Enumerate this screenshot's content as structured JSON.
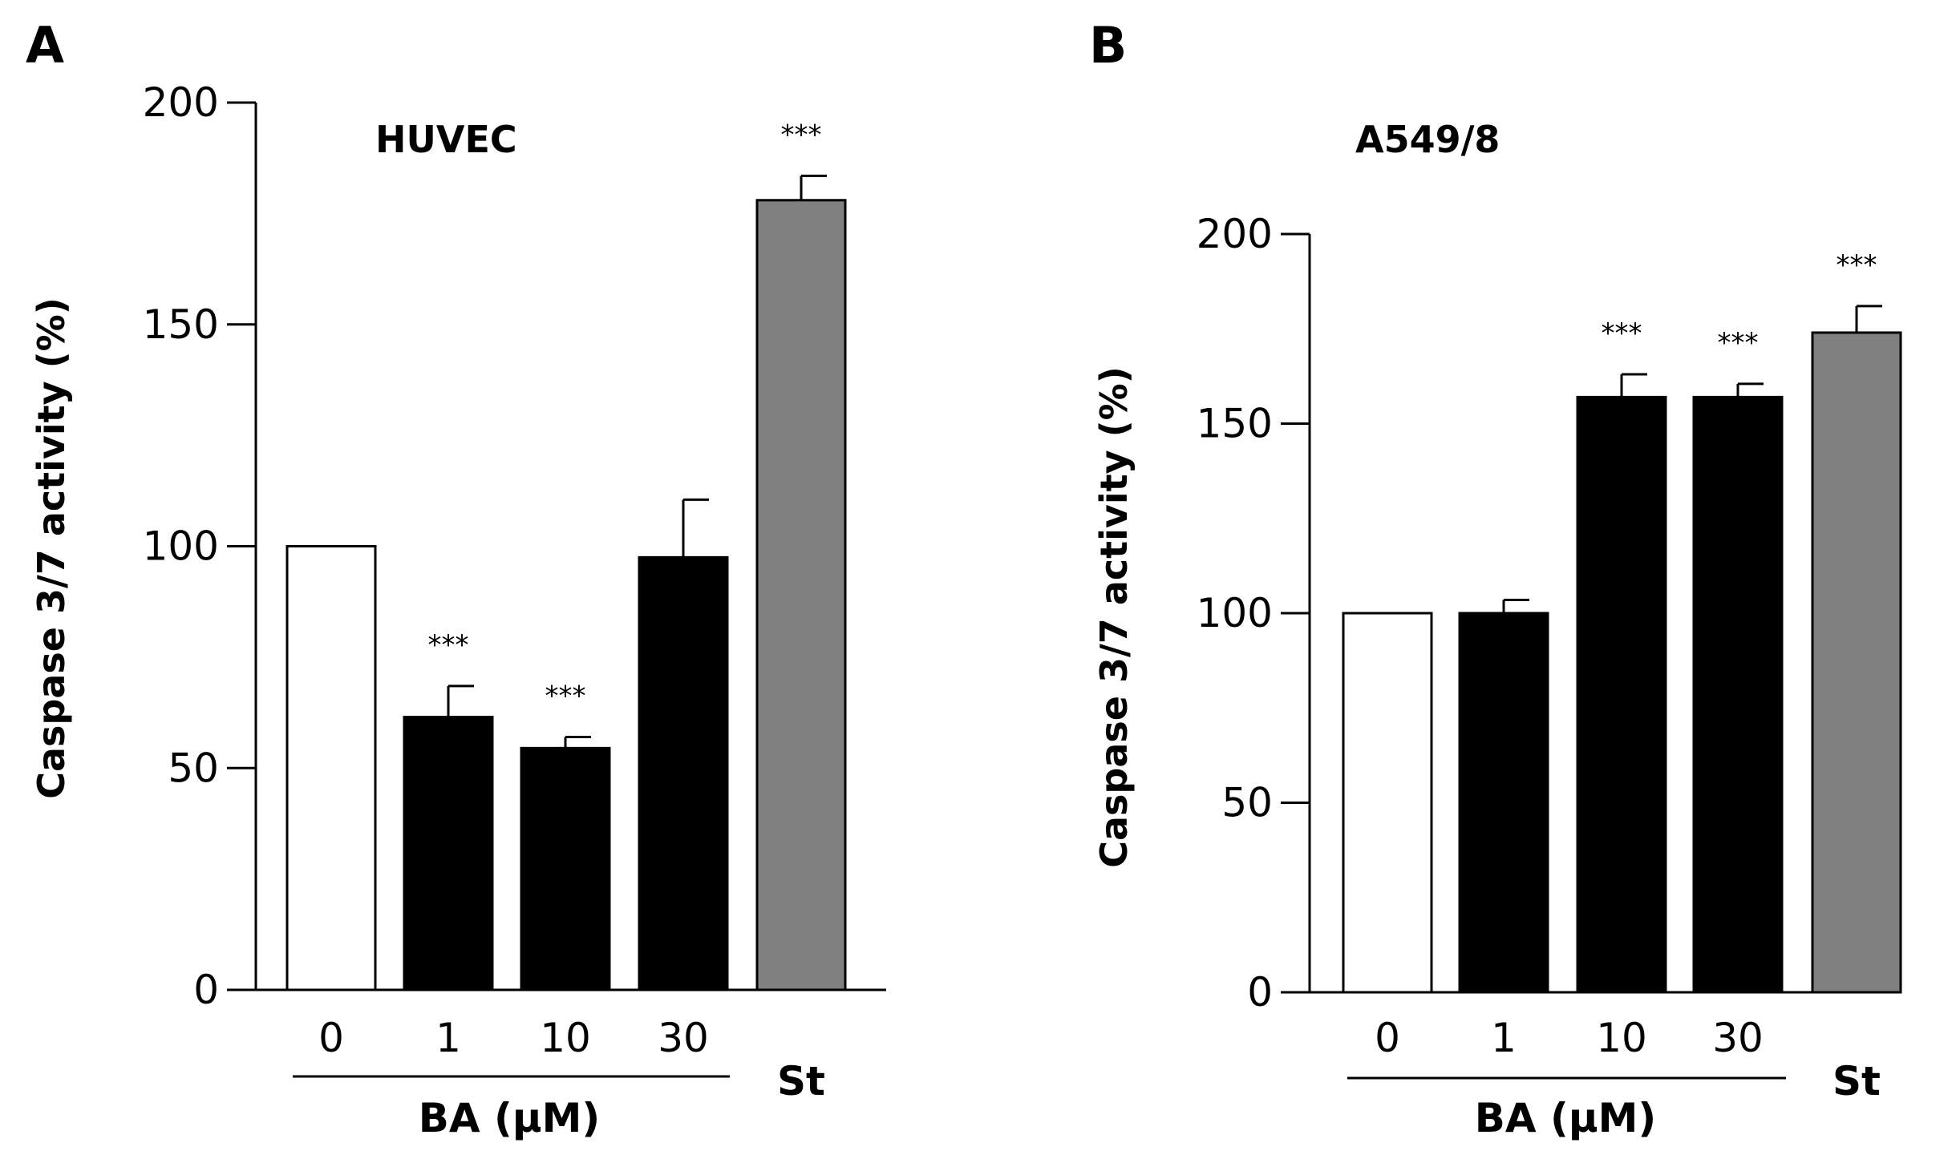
{
  "chart_data": [
    {
      "panel": "A",
      "type": "bar",
      "title": "HUVEC",
      "ylabel": "Caspase 3/7 activity (%)",
      "ylim": [
        0,
        200
      ],
      "yticks": [
        0,
        50,
        100,
        150,
        200
      ],
      "categories": [
        "0",
        "1",
        "10",
        "30",
        "St"
      ],
      "group_label": "BA (µM)",
      "values": [
        100,
        61.5,
        54.5,
        97.5,
        178
      ],
      "errors": [
        0,
        7,
        2.5,
        13,
        5.5
      ],
      "significance": [
        "",
        "***",
        "***",
        "",
        "***"
      ],
      "bar_colors": [
        "#ffffff",
        "#000000",
        "#000000",
        "#000000",
        "#808080"
      ]
    },
    {
      "panel": "B",
      "type": "bar",
      "title": "A549/8",
      "ylabel": "Caspase 3/7 activity (%)",
      "ylim": [
        0,
        200
      ],
      "yticks": [
        0,
        50,
        100,
        150,
        200
      ],
      "categories": [
        "0",
        "1",
        "10",
        "30",
        "St"
      ],
      "group_label": "BA (µM)",
      "values": [
        100,
        100,
        157,
        157,
        174
      ],
      "errors": [
        0,
        3.5,
        6,
        3.5,
        7
      ],
      "significance": [
        "",
        "",
        "***",
        "***",
        "***"
      ],
      "bar_colors": [
        "#ffffff",
        "#000000",
        "#000000",
        "#000000",
        "#808080"
      ]
    }
  ]
}
